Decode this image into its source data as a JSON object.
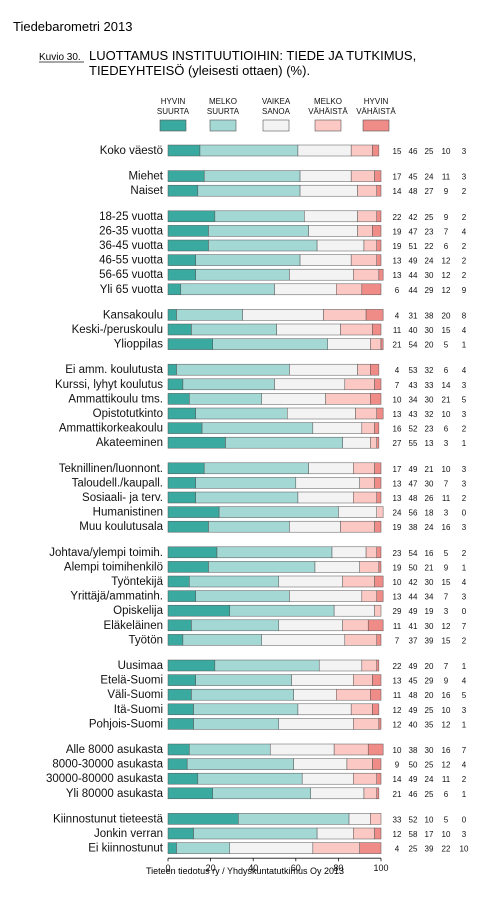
{
  "header": {
    "publication": "Tiedebarometri 2013",
    "figure_label": "Kuvio 30.",
    "title_line1": "LUOTTAMUS INSTITUUTIOIHIN: TIEDE JA TUTKIMUS,",
    "title_line2": "TIEDEYHTEISÖ (yleisesti ottaen) (%).",
    "footer": "Tieteen tiedotus ry / Yhdyskuntatutkimus Oy 2013"
  },
  "chart_data": {
    "type": "bar",
    "stacked": true,
    "orientation": "horizontal",
    "xlim": [
      0,
      100
    ],
    "x_ticks": [
      "0",
      "20",
      "40",
      "60",
      "80",
      "100"
    ],
    "grid": false,
    "legend_position": "top",
    "series": [
      {
        "name_lines": [
          "HYVIN",
          "SUURTA"
        ],
        "color": "#3aa99f"
      },
      {
        "name_lines": [
          "MELKO",
          "SUURTA"
        ],
        "color": "#a3d8d4"
      },
      {
        "name_lines": [
          "VAIKEA",
          "SANOA"
        ],
        "color": "#f3f3f3"
      },
      {
        "name_lines": [
          "MELKO",
          "VÄHÄISTÄ"
        ],
        "color": "#fbc8c4"
      },
      {
        "name_lines": [
          "HYVIN",
          "VÄHÄISTÄ"
        ],
        "color": "#f08c88"
      }
    ],
    "groups": [
      {
        "rows": [
          {
            "label": "Koko väestö",
            "values": [
              15,
              46,
              25,
              10,
              3
            ]
          }
        ]
      },
      {
        "rows": [
          {
            "label": "Miehet",
            "values": [
              17,
              45,
              24,
              11,
              3
            ]
          },
          {
            "label": "Naiset",
            "values": [
              14,
              48,
              27,
              9,
              2
            ]
          }
        ]
      },
      {
        "rows": [
          {
            "label": "18-25 vuotta",
            "values": [
              22,
              42,
              25,
              9,
              2
            ]
          },
          {
            "label": "26-35 vuotta",
            "values": [
              19,
              47,
              23,
              7,
              4
            ]
          },
          {
            "label": "36-45 vuotta",
            "values": [
              19,
              51,
              22,
              6,
              2
            ]
          },
          {
            "label": "46-55 vuotta",
            "values": [
              13,
              49,
              24,
              12,
              2
            ]
          },
          {
            "label": "56-65 vuotta",
            "values": [
              13,
              44,
              30,
              12,
              2
            ]
          },
          {
            "label": "Yli 65 vuotta",
            "values": [
              6,
              44,
              29,
              12,
              9
            ]
          }
        ]
      },
      {
        "rows": [
          {
            "label": "Kansakoulu",
            "values": [
              4,
              31,
              38,
              20,
              8
            ]
          },
          {
            "label": "Keski-/peruskoulu",
            "values": [
              11,
              40,
              30,
              15,
              4
            ]
          },
          {
            "label": "Ylioppilas",
            "values": [
              21,
              54,
              20,
              5,
              1
            ]
          }
        ]
      },
      {
        "rows": [
          {
            "label": "Ei amm. koulutusta",
            "values": [
              4,
              53,
              32,
              6,
              4
            ]
          },
          {
            "label": "Kurssi, lyhyt koulutus",
            "values": [
              7,
              43,
              33,
              14,
              3
            ]
          },
          {
            "label": "Ammattikoulu tms.",
            "values": [
              10,
              34,
              30,
              21,
              5
            ]
          },
          {
            "label": "Opistotutkinto",
            "values": [
              13,
              43,
              32,
              10,
              3
            ]
          },
          {
            "label": "Ammattikorkeakoulu",
            "values": [
              16,
              52,
              23,
              6,
              2
            ]
          },
          {
            "label": "Akateeminen",
            "values": [
              27,
              55,
              13,
              3,
              1
            ]
          }
        ]
      },
      {
        "rows": [
          {
            "label": "Teknillinen/luonnont.",
            "values": [
              17,
              49,
              21,
              10,
              3
            ]
          },
          {
            "label": "Taloudell./kaupall.",
            "values": [
              13,
              47,
              30,
              7,
              3
            ]
          },
          {
            "label": "Sosiaali- ja terv.",
            "values": [
              13,
              48,
              26,
              11,
              2
            ]
          },
          {
            "label": "Humanistinen",
            "values": [
              24,
              56,
              18,
              3,
              0
            ]
          },
          {
            "label": "Muu koulutusala",
            "values": [
              19,
              38,
              24,
              16,
              3
            ]
          }
        ]
      },
      {
        "rows": [
          {
            "label": "Johtava/ylempi toimih.",
            "values": [
              23,
              54,
              16,
              5,
              2
            ]
          },
          {
            "label": "Alempi toimihenkilö",
            "values": [
              19,
              50,
              21,
              9,
              1
            ]
          },
          {
            "label": "Työntekijä",
            "values": [
              10,
              42,
              30,
              15,
              4
            ]
          },
          {
            "label": "Yrittäjä/ammatinh.",
            "values": [
              13,
              44,
              34,
              7,
              3
            ]
          },
          {
            "label": "Opiskelija",
            "values": [
              29,
              49,
              19,
              3,
              0
            ]
          },
          {
            "label": "Eläkeläinen",
            "values": [
              11,
              41,
              30,
              12,
              7
            ]
          },
          {
            "label": "Työtön",
            "values": [
              7,
              37,
              39,
              15,
              2
            ]
          }
        ]
      },
      {
        "rows": [
          {
            "label": "Uusimaa",
            "values": [
              22,
              49,
              20,
              7,
              1
            ]
          },
          {
            "label": "Etelä-Suomi",
            "values": [
              13,
              45,
              29,
              9,
              4
            ]
          },
          {
            "label": "Väli-Suomi",
            "values": [
              11,
              48,
              20,
              16,
              5
            ]
          },
          {
            "label": "Itä-Suomi",
            "values": [
              12,
              49,
              25,
              10,
              3
            ]
          },
          {
            "label": "Pohjois-Suomi",
            "values": [
              12,
              40,
              35,
              12,
              1
            ]
          }
        ]
      },
      {
        "rows": [
          {
            "label": "Alle 8000 asukasta",
            "values": [
              10,
              38,
              30,
              16,
              7
            ]
          },
          {
            "label": "8000-30000 asukasta",
            "values": [
              9,
              50,
              25,
              12,
              4
            ]
          },
          {
            "label": "30000-80000 asukasta",
            "values": [
              14,
              49,
              24,
              11,
              2
            ]
          },
          {
            "label": "Yli 80000 asukasta",
            "values": [
              21,
              46,
              25,
              6,
              1
            ]
          }
        ]
      },
      {
        "rows": [
          {
            "label": "Kiinnostunut tieteestä",
            "values": [
              33,
              52,
              10,
              5,
              0
            ]
          },
          {
            "label": "Jonkin verran",
            "values": [
              12,
              58,
              17,
              10,
              3
            ]
          },
          {
            "label": "Ei kiinnostunut",
            "values": [
              4,
              25,
              39,
              22,
              10
            ]
          }
        ]
      }
    ]
  }
}
